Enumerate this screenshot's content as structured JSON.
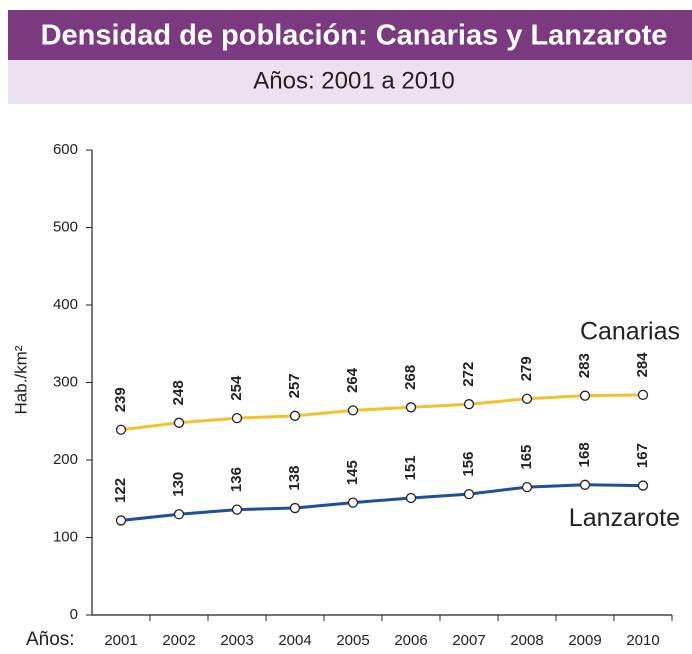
{
  "chart_data": {
    "type": "line",
    "title": "Densidad de población: Canarias y Lanzarote",
    "subtitle": "Años: 2001 a 2010",
    "x_label": "Años:",
    "y_label": "Hab./km²",
    "categories": [
      "2001",
      "2002",
      "2003",
      "2004",
      "2005",
      "2006",
      "2007",
      "2008",
      "2009",
      "2010"
    ],
    "series": [
      {
        "name": "Canarias",
        "color": "#f2c12e",
        "values": [
          239,
          248,
          254,
          257,
          264,
          268,
          272,
          279,
          283,
          284
        ]
      },
      {
        "name": "Lanzarote",
        "color": "#1f4e9a",
        "values": [
          122,
          130,
          136,
          138,
          145,
          151,
          156,
          165,
          168,
          167
        ]
      }
    ],
    "ylim": [
      0,
      600
    ],
    "yticks": [
      0,
      100,
      200,
      300,
      400,
      500,
      600
    ]
  }
}
